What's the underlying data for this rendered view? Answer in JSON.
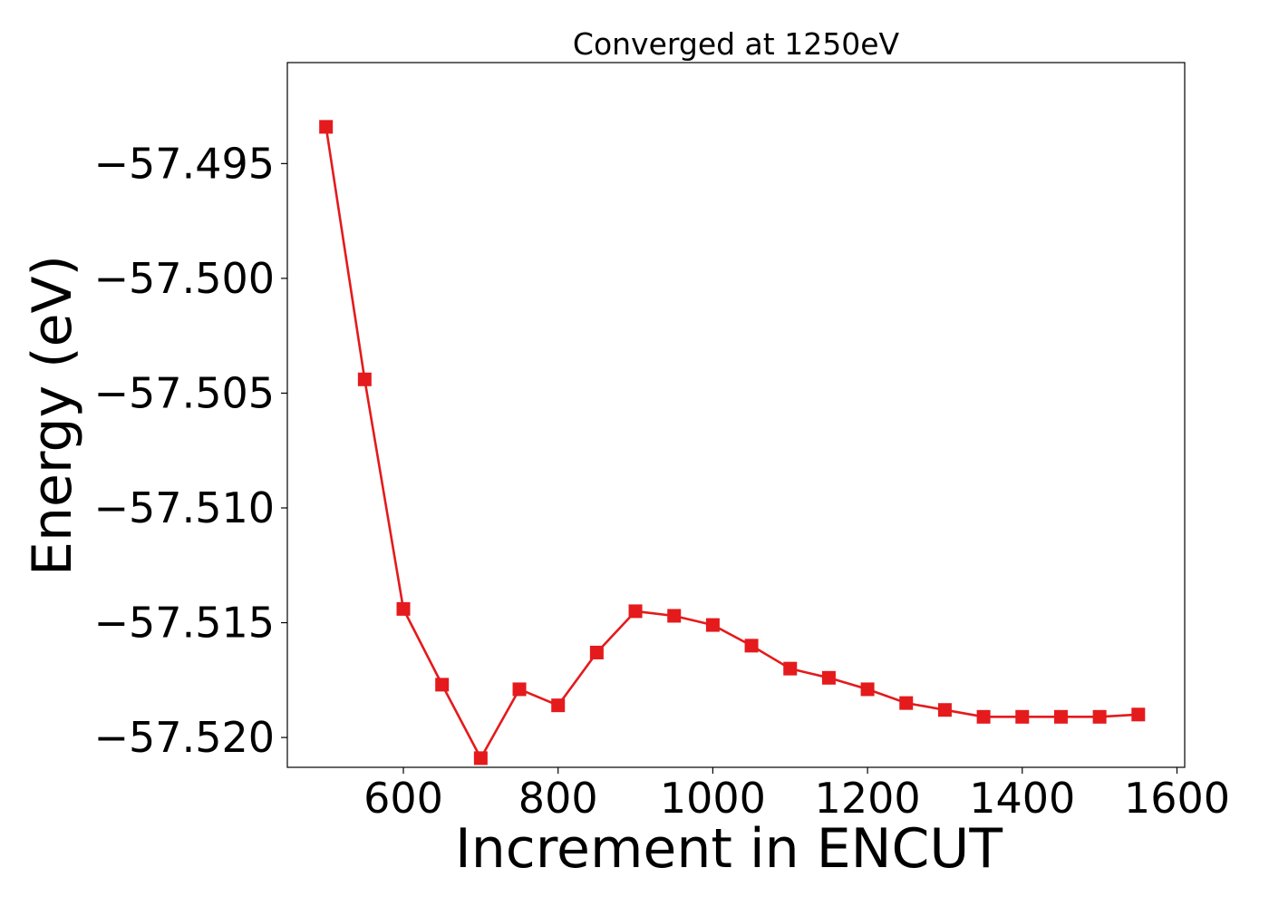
{
  "chart_data": {
    "type": "line",
    "title": "Converged at 1250eV",
    "xlabel": "Increment in ENCUT",
    "ylabel": "Energy (eV)",
    "xlim": [
      450,
      1610
    ],
    "ylim": [
      -57.5213,
      -57.4906
    ],
    "xticks": [
      600,
      800,
      1000,
      1200,
      1400,
      1600
    ],
    "xtick_labels": [
      "600",
      "800",
      "1000",
      "1200",
      "1400",
      "1600"
    ],
    "yticks": [
      -57.495,
      -57.5,
      -57.505,
      -57.51,
      -57.515,
      -57.52
    ],
    "ytick_labels": [
      "−57.495",
      "−57.500",
      "−57.505",
      "−57.510",
      "−57.515",
      "−57.520"
    ],
    "grid": false,
    "series": [
      {
        "color": "#e41a1c",
        "marker": "square",
        "x": [
          500,
          550,
          600,
          650,
          700,
          750,
          800,
          850,
          900,
          950,
          1000,
          1050,
          1100,
          1150,
          1200,
          1250,
          1300,
          1350,
          1400,
          1450,
          1500,
          1550
        ],
        "y": [
          -57.4934,
          -57.5044,
          -57.5144,
          -57.5177,
          -57.5209,
          -57.5179,
          -57.5186,
          -57.5163,
          -57.5145,
          -57.5147,
          -57.5151,
          -57.516,
          -57.517,
          -57.5174,
          -57.5179,
          -57.5185,
          -57.5188,
          -57.5191,
          -57.5191,
          -57.5191,
          -57.5191,
          -57.519
        ]
      }
    ]
  }
}
